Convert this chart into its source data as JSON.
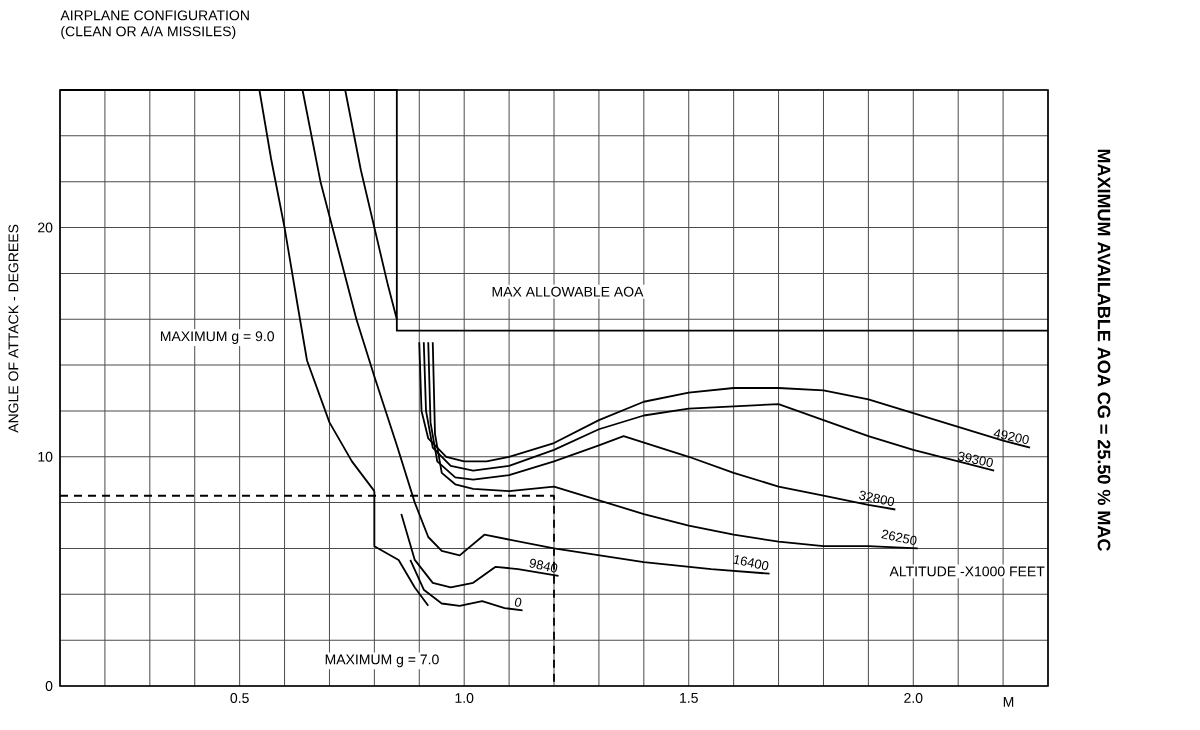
{
  "chart_data": {
    "type": "line",
    "title": "AIRPLANE CONFIGURATION",
    "subtitle": "(CLEAN OR A/A MISSILES)",
    "xlabel": "M",
    "ylabel": "ANGLE OF ATTACK - DEGREES",
    "annotations": [
      "MAXIMUM AVAILABLE AOA CG = 25.50 % MAC",
      "MAXIMUM g = 9.0",
      "MAX ALLOWABLE AOA",
      "MAXIMUM g = 7.0",
      "ALTITUDE -X1000 FEET"
    ],
    "xlim": [
      0.1,
      2.3
    ],
    "ylim": [
      0,
      26
    ],
    "xticks": [
      {
        "value": 0.1,
        "label": null
      },
      {
        "value": 0.2,
        "label": null
      },
      {
        "value": 0.3,
        "label": null
      },
      {
        "value": 0.4,
        "label": null
      },
      0.5,
      {
        "value": 0.6,
        "label": null
      },
      {
        "value": 0.7,
        "label": null
      },
      {
        "value": 0.8,
        "label": null
      },
      {
        "value": 0.9,
        "label": null
      },
      {
        "value": 1.0,
        "label": "1.0"
      },
      {
        "value": 1.1,
        "label": null
      },
      {
        "value": 1.2,
        "label": null
      },
      {
        "value": 1.3,
        "label": null
      },
      {
        "value": 1.4,
        "label": null
      },
      1.5,
      {
        "value": 1.6,
        "label": null
      },
      {
        "value": 1.7,
        "label": null
      },
      {
        "value": 1.8,
        "label": null
      },
      {
        "value": 1.9,
        "label": null
      },
      {
        "value": 2.0,
        "label": "2.0"
      },
      {
        "value": 2.1,
        "label": null
      },
      {
        "value": 2.2,
        "label": null
      },
      {
        "value": 2.3,
        "label": null
      }
    ],
    "yticks": [
      0,
      {
        "value": 2,
        "label": null
      },
      {
        "value": 4,
        "label": null
      },
      {
        "value": 6,
        "label": null
      },
      {
        "value": 8,
        "label": null
      },
      10,
      {
        "value": 12,
        "label": null
      },
      {
        "value": 14,
        "label": null
      },
      {
        "value": 16,
        "label": null
      },
      {
        "value": 18,
        "label": null
      },
      20,
      {
        "value": 22,
        "label": null
      },
      {
        "value": 24,
        "label": null
      },
      {
        "value": 26,
        "label": null
      }
    ],
    "grid": true,
    "legend": false,
    "marker": "none",
    "line_style": "solid",
    "series": [
      {
        "name": "49200",
        "color": "#000000",
        "x": [
          0.9,
          0.905,
          0.92,
          0.96,
          1.0,
          1.05,
          1.1,
          1.2,
          1.3,
          1.4,
          1.5,
          1.6,
          1.7,
          1.8,
          1.9,
          2.0,
          2.1,
          2.2,
          2.26
        ],
        "values": [
          15,
          12,
          10.8,
          10.0,
          9.8,
          9.8,
          10.0,
          10.6,
          11.6,
          12.4,
          12.8,
          13.0,
          13.0,
          12.9,
          12.5,
          11.9,
          11.3,
          10.7,
          10.4
        ]
      },
      {
        "name": "39300",
        "color": "#000000",
        "x": [
          0.91,
          0.915,
          0.93,
          0.97,
          1.02,
          1.1,
          1.2,
          1.3,
          1.4,
          1.5,
          1.7,
          1.8,
          1.9,
          2.0,
          2.1,
          2.18
        ],
        "values": [
          15,
          12,
          10.4,
          9.6,
          9.4,
          9.6,
          10.3,
          11.2,
          11.8,
          12.1,
          12.3,
          11.6,
          10.9,
          10.3,
          9.8,
          9.4
        ]
      },
      {
        "name": "32800",
        "color": "#000000",
        "x": [
          0.92,
          0.925,
          0.94,
          0.98,
          1.02,
          1.1,
          1.2,
          1.3,
          1.355,
          1.5,
          1.6,
          1.7,
          1.8,
          1.9,
          1.96
        ],
        "values": [
          15,
          11.5,
          9.8,
          9.1,
          9.0,
          9.2,
          9.8,
          10.5,
          10.9,
          10.0,
          9.3,
          8.7,
          8.3,
          7.9,
          7.7
        ]
      },
      {
        "name": "26250",
        "color": "#000000",
        "x": [
          0.93,
          0.935,
          0.95,
          0.98,
          1.02,
          1.1,
          1.2,
          1.3,
          1.4,
          1.5,
          1.6,
          1.7,
          1.8,
          1.9,
          2.01
        ],
        "values": [
          15,
          11,
          9.3,
          8.8,
          8.6,
          8.5,
          8.7,
          8.1,
          7.5,
          7.0,
          6.6,
          6.3,
          6.1,
          6.1,
          6.0
        ]
      },
      {
        "name": "16400",
        "color": "#000000",
        "x": [
          0.64,
          0.68,
          0.72,
          0.76,
          0.8,
          0.85,
          0.89,
          0.92,
          0.95,
          0.99,
          1.045,
          1.2,
          1.4,
          1.55,
          1.68
        ],
        "values": [
          26,
          22,
          19,
          16,
          13.5,
          10.5,
          8.0,
          6.5,
          5.9,
          5.7,
          6.6,
          6.0,
          5.4,
          5.1,
          4.9
        ]
      },
      {
        "name": "9840",
        "color": "#000000",
        "x": [
          0.86,
          0.89,
          0.93,
          0.97,
          1.02,
          1.07,
          1.12,
          1.21
        ],
        "values": [
          7.5,
          5.5,
          4.5,
          4.3,
          4.5,
          5.2,
          5.1,
          4.8
        ]
      },
      {
        "name": "0",
        "color": "#000000",
        "x": [
          0.88,
          0.91,
          0.95,
          0.99,
          1.04,
          1.09,
          1.13
        ],
        "values": [
          5.5,
          4.2,
          3.6,
          3.5,
          3.7,
          3.4,
          3.3
        ]
      },
      {
        "color": "#000000",
        "x": [
          0.544,
          0.57,
          0.6,
          0.63,
          0.65,
          0.7,
          0.75,
          0.8
        ],
        "values": [
          26,
          23,
          20,
          16.5,
          14.2,
          11.5,
          9.8,
          8.5
        ]
      },
      {
        "color": "#000000",
        "x": [
          0.735,
          0.77,
          0.8,
          0.83,
          0.85
        ],
        "values": [
          26,
          22.5,
          20,
          17.5,
          16
        ]
      },
      {
        "color": "#000000",
        "x": [
          0.8,
          0.8,
          0.854,
          0.89,
          0.92
        ],
        "values": [
          8.5,
          6.1,
          5.5,
          4.3,
          3.5
        ]
      },
      {
        "color": "#000000",
        "x": [
          0.1,
          0.85,
          0.85,
          2.3
        ],
        "values": [
          26,
          26,
          15.5,
          15.5
        ]
      },
      {
        "color": "#000000",
        "line_style": "dashed",
        "x": [
          0.1,
          1.2,
          1.2
        ],
        "values": [
          8.3,
          8.3,
          0
        ]
      }
    ]
  }
}
